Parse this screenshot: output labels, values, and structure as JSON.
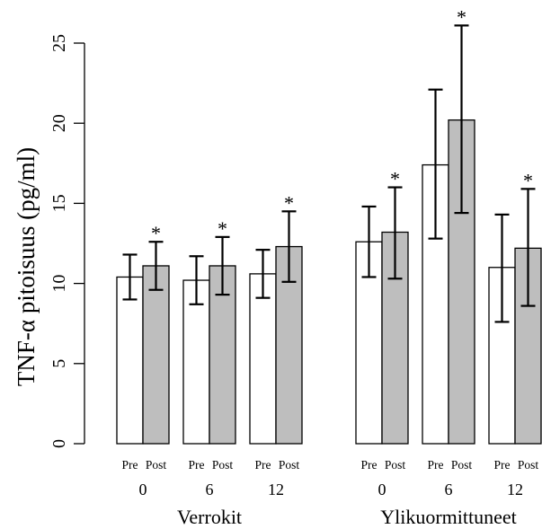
{
  "chart_data": {
    "type": "bar",
    "ylabel": "TNF-α pitoisuus (pg/ml)",
    "ylim": [
      0,
      25
    ],
    "yticks": [
      "0",
      "5",
      "10",
      "15",
      "20",
      "25"
    ],
    "grid": false,
    "legend": "none",
    "groups": [
      {
        "label": "Verrokit",
        "timepoints": [
          {
            "time": "0",
            "bars": [
              {
                "phase": "Pre",
                "value": 10.4,
                "err_low": 9.0,
                "err_high": 11.8,
                "sig": ""
              },
              {
                "phase": "Post",
                "value": 11.1,
                "err_low": 9.6,
                "err_high": 12.6,
                "sig": "*"
              }
            ]
          },
          {
            "time": "6",
            "bars": [
              {
                "phase": "Pre",
                "value": 10.2,
                "err_low": 8.7,
                "err_high": 11.7,
                "sig": ""
              },
              {
                "phase": "Post",
                "value": 11.1,
                "err_low": 9.3,
                "err_high": 12.9,
                "sig": "*"
              }
            ]
          },
          {
            "time": "12",
            "bars": [
              {
                "phase": "Pre",
                "value": 10.6,
                "err_low": 9.1,
                "err_high": 12.1,
                "sig": ""
              },
              {
                "phase": "Post",
                "value": 12.3,
                "err_low": 10.1,
                "err_high": 14.5,
                "sig": "*"
              }
            ]
          }
        ]
      },
      {
        "label": "Ylikuormittuneet",
        "timepoints": [
          {
            "time": "0",
            "bars": [
              {
                "phase": "Pre",
                "value": 12.6,
                "err_low": 10.4,
                "err_high": 14.8,
                "sig": ""
              },
              {
                "phase": "Post",
                "value": 13.2,
                "err_low": 10.3,
                "err_high": 16.0,
                "sig": "*"
              }
            ]
          },
          {
            "time": "6",
            "bars": [
              {
                "phase": "Pre",
                "value": 17.4,
                "err_low": 12.8,
                "err_high": 22.1,
                "sig": ""
              },
              {
                "phase": "Post",
                "value": 20.2,
                "err_low": 14.4,
                "err_high": 26.1,
                "sig": "*"
              }
            ]
          },
          {
            "time": "12",
            "bars": [
              {
                "phase": "Pre",
                "value": 11.0,
                "err_low": 7.6,
                "err_high": 14.3,
                "sig": ""
              },
              {
                "phase": "Post",
                "value": 12.2,
                "err_low": 8.6,
                "err_high": 15.9,
                "sig": "*"
              }
            ]
          }
        ]
      }
    ],
    "colors": {
      "Pre": "#ffffff",
      "Post": "#bebebe",
      "outline": "#000000"
    }
  }
}
